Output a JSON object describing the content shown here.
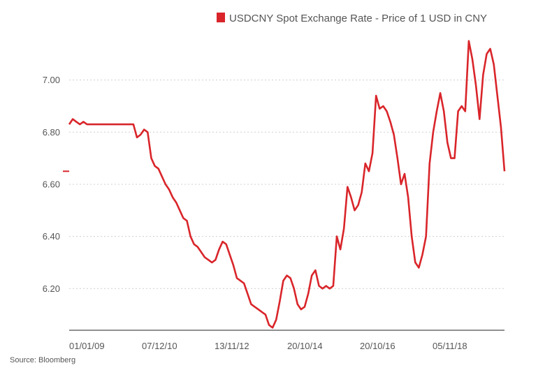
{
  "chart_data": {
    "type": "line",
    "legend": {
      "label": "USDCNY Spot Exchange Rate - Price of 1 USD in CNY",
      "position": "top"
    },
    "x_tick_labels": [
      "01/01/09",
      "07/12/10",
      "13/11/12",
      "20/10/14",
      "20/10/16",
      "05/11/18"
    ],
    "y_ticks": [
      6.2,
      6.4,
      6.6,
      6.8,
      7.0
    ],
    "y_tick_labels": [
      "6.20",
      "6.40",
      "6.60",
      "6.80",
      "7.00"
    ],
    "ylim": [
      6.04,
      7.2
    ],
    "grid": "horizontal-dotted",
    "color": "#d9252a",
    "last_value_marker": 6.65,
    "series": [
      {
        "values": [
          6.83,
          6.85,
          6.84,
          6.83,
          6.84,
          6.83,
          6.83,
          6.83,
          6.83,
          6.83,
          6.83,
          6.83,
          6.83,
          6.83,
          6.83,
          6.83,
          6.83,
          6.83,
          6.83,
          6.78,
          6.79,
          6.81,
          6.8,
          6.7,
          6.67,
          6.66,
          6.63,
          6.6,
          6.58,
          6.55,
          6.53,
          6.5,
          6.47,
          6.46,
          6.4,
          6.37,
          6.36,
          6.34,
          6.32,
          6.31,
          6.3,
          6.31,
          6.35,
          6.38,
          6.37,
          6.33,
          6.29,
          6.24,
          6.23,
          6.22,
          6.18,
          6.14,
          6.13,
          6.12,
          6.11,
          6.1,
          6.06,
          6.05,
          6.08,
          6.15,
          6.23,
          6.25,
          6.24,
          6.2,
          6.14,
          6.12,
          6.13,
          6.18,
          6.25,
          6.27,
          6.21,
          6.2,
          6.21,
          6.2,
          6.21,
          6.4,
          6.35,
          6.43,
          6.59,
          6.55,
          6.5,
          6.52,
          6.57,
          6.68,
          6.65,
          6.72,
          6.94,
          6.89,
          6.9,
          6.88,
          6.84,
          6.79,
          6.7,
          6.6,
          6.64,
          6.55,
          6.4,
          6.3,
          6.28,
          6.33,
          6.4,
          6.68,
          6.8,
          6.88,
          6.95,
          6.88,
          6.76,
          6.7,
          6.7,
          6.88,
          6.9,
          6.88,
          7.15,
          7.08,
          6.98,
          6.85,
          7.02,
          7.1,
          7.12,
          7.06,
          6.94,
          6.82,
          6.65
        ]
      }
    ]
  },
  "source": "Source: Bloomberg"
}
